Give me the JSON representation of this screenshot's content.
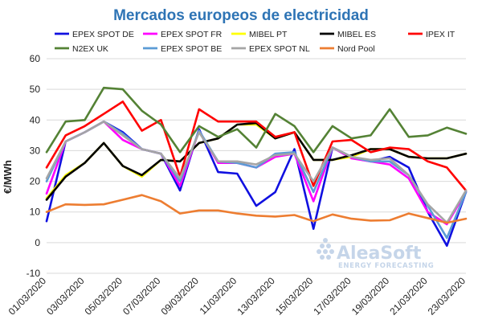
{
  "chart_data": {
    "type": "line",
    "title": "Mercados europeos de electricidad",
    "ylabel": "€/MWh",
    "xlabel": "",
    "ylim": [
      -10,
      60
    ],
    "yticks": [
      -10,
      0,
      10,
      20,
      30,
      40,
      50,
      60
    ],
    "grid": "horizontal",
    "legend": "top",
    "x": [
      "01/03/2020",
      "02/03/2020",
      "03/03/2020",
      "04/03/2020",
      "05/03/2020",
      "06/03/2020",
      "07/03/2020",
      "08/03/2020",
      "09/03/2020",
      "10/03/2020",
      "11/03/2020",
      "12/03/2020",
      "13/03/2020",
      "14/03/2020",
      "15/03/2020",
      "16/03/2020",
      "17/03/2020",
      "18/03/2020",
      "19/03/2020",
      "20/03/2020",
      "21/03/2020",
      "22/03/2020",
      "23/03/2020"
    ],
    "xtick_labels": [
      "01/03/2020",
      "03/03/2020",
      "05/03/2020",
      "07/03/2020",
      "09/03/2020",
      "11/03/2020",
      "13/03/2020",
      "15/03/2020",
      "17/03/2020",
      "19/03/2020",
      "21/03/2020",
      "23/03/2020"
    ],
    "series": [
      {
        "name": "EPEX SPOT DE",
        "color": "#1010e0",
        "values": [
          7,
          33,
          36,
          39.5,
          36,
          30.5,
          29,
          17,
          37,
          23,
          22.5,
          12,
          16.5,
          30.5,
          4.5,
          31,
          28,
          26.5,
          28,
          24.5,
          10,
          -1,
          16.5
        ]
      },
      {
        "name": "EPEX SPOT FR",
        "color": "#ff00ff",
        "values": [
          16,
          33,
          36,
          39.5,
          33.5,
          30.5,
          29,
          18.5,
          36.5,
          26,
          26,
          24.5,
          28,
          29,
          13.5,
          31,
          27.5,
          26.5,
          25.5,
          21,
          10,
          6,
          16.5
        ]
      },
      {
        "name": "MIBEL PT",
        "color": "#ffff00",
        "values": [
          14.5,
          22,
          26,
          32.5,
          25,
          21.5,
          27,
          26.5,
          32.5,
          34,
          38.5,
          38.5,
          34,
          36,
          27,
          27,
          28,
          30.5,
          30.5,
          28,
          27.5,
          27.5,
          29
        ]
      },
      {
        "name": "MIBEL ES",
        "color": "#000000",
        "values": [
          14,
          21.5,
          26,
          32.5,
          25,
          22,
          27,
          26.5,
          32.5,
          34,
          38.5,
          39,
          34,
          36,
          27,
          27,
          28.5,
          30.5,
          30.5,
          28,
          27.5,
          27.5,
          29
        ]
      },
      {
        "name": "IPEX IT",
        "color": "#ff0000",
        "values": [
          24.5,
          35,
          38,
          42,
          46,
          36.5,
          40,
          21.5,
          43.5,
          39.5,
          39.5,
          39.5,
          34.5,
          36,
          18.5,
          33,
          33.5,
          29.5,
          31,
          30.5,
          26.5,
          24.5,
          17
        ]
      },
      {
        "name": "N2EX UK",
        "color": "#548235",
        "values": [
          29.5,
          39.5,
          40,
          50.5,
          50,
          43,
          38.5,
          29.5,
          38,
          34.5,
          37,
          31,
          42,
          38,
          29.5,
          38,
          34,
          35,
          43.5,
          34.5,
          35,
          37.5,
          35.5
        ]
      },
      {
        "name": "EPEX SPOT BE",
        "color": "#5b9bd5",
        "values": [
          20,
          33,
          36,
          39.5,
          35.5,
          30.5,
          29,
          20,
          36.5,
          26.5,
          26,
          24.5,
          29,
          29.5,
          16.5,
          31,
          28,
          26.5,
          26.5,
          22,
          12,
          1.5,
          16.5
        ]
      },
      {
        "name": "EPEX SPOT NL",
        "color": "#a5a5a5",
        "values": [
          21,
          33,
          36,
          39.5,
          35,
          30.5,
          29,
          21,
          36,
          26.5,
          26.5,
          25.5,
          28.5,
          29,
          20,
          31,
          28,
          27,
          27.5,
          22,
          12.5,
          6.5,
          17
        ]
      },
      {
        "name": "Nord Pool",
        "color": "#ed7d31",
        "values": [
          10,
          12.5,
          12.3,
          12.5,
          14,
          15.5,
          13.5,
          9.5,
          10.5,
          10.5,
          9.5,
          8.8,
          8.5,
          9,
          7,
          9.2,
          7.8,
          7.2,
          7.3,
          9.5,
          8,
          6.5,
          7.8
        ]
      }
    ]
  },
  "watermark": {
    "brand": "AleaSoft",
    "tagline": "ENERGY FORECASTING"
  }
}
